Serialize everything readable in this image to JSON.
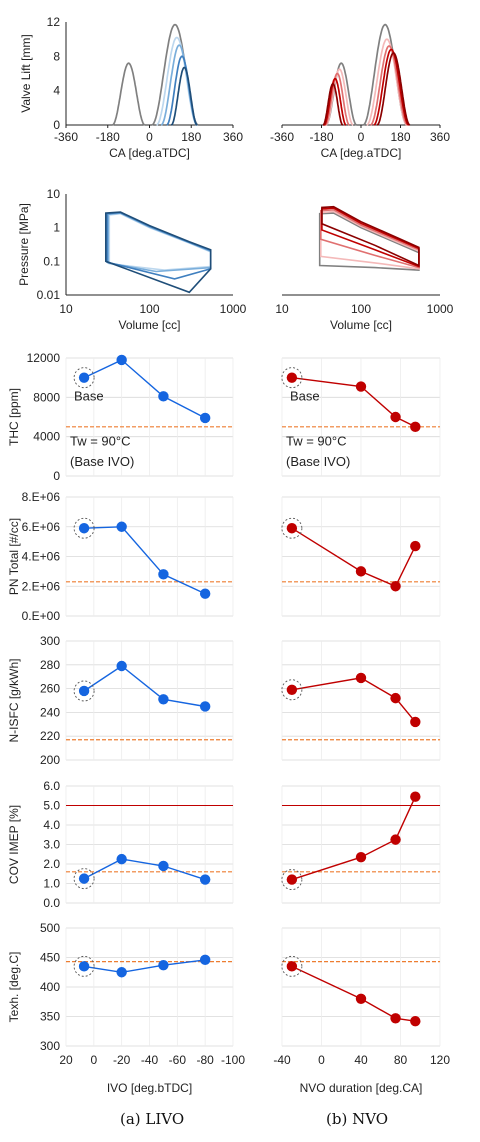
{
  "captions": {
    "a": "(a) LIVO",
    "b": "(b) NVO"
  },
  "annotations": {
    "base": "Base",
    "tw": "Tw = 90°C",
    "base_ivo": "(Base IVO)"
  },
  "colors": {
    "grey": "#808080",
    "blue_light": "#bcd7ee",
    "blue_mid": "#7aaedb",
    "blue": "#3f7fbf",
    "blue_dark": "#1f4e79",
    "red_light": "#f4b9b9",
    "red_mid": "#e07070",
    "red": "#c00000",
    "red_dark": "#8b0000",
    "blue_marker": "#1565e0",
    "red_marker": "#c00000",
    "baseline": "#ed7d31",
    "limit": "#c00000"
  },
  "chart_data": [
    {
      "id": "lift_a",
      "type": "line",
      "xlabel": "CA [deg.aTDC]",
      "ylabel": "Valve Lift [mm]",
      "xlim": [
        -360,
        360
      ],
      "ylim": [
        0,
        12
      ],
      "xticks": [
        -360,
        -180,
        0,
        180,
        360
      ],
      "yticks": [
        0,
        4,
        8,
        12
      ],
      "series": [
        {
          "color": "#808080",
          "type": "exhaust",
          "center": -90,
          "half": 70,
          "peak": 7.2
        },
        {
          "color": "#808080",
          "type": "intake",
          "center": 110,
          "half": 100,
          "peak": 11.7
        },
        {
          "color": "#bcd7ee",
          "type": "intake",
          "center": 118,
          "half": 88,
          "peak": 10.2
        },
        {
          "color": "#7aaedb",
          "type": "intake",
          "center": 128,
          "half": 78,
          "peak": 9.3
        },
        {
          "color": "#3f7fbf",
          "type": "intake",
          "center": 140,
          "half": 66,
          "peak": 8.0
        },
        {
          "color": "#1f4e79",
          "type": "intake",
          "center": 150,
          "half": 56,
          "peak": 6.7
        }
      ]
    },
    {
      "id": "lift_b",
      "type": "line",
      "xlabel": "CA [deg.aTDC]",
      "ylabel": "",
      "xlim": [
        -360,
        360
      ],
      "ylim": [
        0,
        12
      ],
      "xticks": [
        -360,
        -180,
        0,
        180,
        360
      ],
      "series": [
        {
          "color": "#808080",
          "type": "exhaust",
          "center": -90,
          "half": 70,
          "peak": 7.2
        },
        {
          "color": "#808080",
          "type": "intake",
          "center": 110,
          "half": 100,
          "peak": 11.7
        },
        {
          "color": "#f4b9b9",
          "type": "exhaust",
          "center": -98,
          "half": 62,
          "peak": 6.5
        },
        {
          "color": "#f4b9b9",
          "type": "intake",
          "center": 118,
          "half": 92,
          "peak": 10.0
        },
        {
          "color": "#e07070",
          "type": "exhaust",
          "center": -108,
          "half": 55,
          "peak": 6.0
        },
        {
          "color": "#e07070",
          "type": "intake",
          "center": 128,
          "half": 85,
          "peak": 9.2
        },
        {
          "color": "#c00000",
          "type": "exhaust",
          "center": -118,
          "half": 50,
          "peak": 5.4
        },
        {
          "color": "#c00000",
          "type": "intake",
          "center": 138,
          "half": 80,
          "peak": 8.8
        },
        {
          "color": "#8b0000",
          "type": "exhaust",
          "center": -128,
          "half": 45,
          "peak": 4.8
        },
        {
          "color": "#8b0000",
          "type": "intake",
          "center": 148,
          "half": 75,
          "peak": 8.4
        }
      ]
    },
    {
      "id": "pv_a",
      "type": "line",
      "scale": "log",
      "xlabel": "Volume [cc]",
      "ylabel": "Pressure [MPa]",
      "xlim": [
        10,
        1000
      ],
      "ylim": [
        0.01,
        10
      ],
      "xticks": [
        10,
        100,
        1000
      ],
      "yticks": [
        0.01,
        0.1,
        1,
        10
      ],
      "series": [
        {
          "color": "#bcd7ee",
          "high": [
            [
              33,
              2.4
            ],
            [
              45,
              2.6
            ],
            [
              100,
              1.0
            ],
            [
              300,
              0.35
            ],
            [
              540,
              0.19
            ]
          ],
          "low": [
            [
              33,
              0.085
            ],
            [
              150,
              0.055
            ],
            [
              540,
              0.07
            ]
          ]
        },
        {
          "color": "#7aaedb",
          "high": [
            [
              32,
              2.5
            ],
            [
              45,
              2.7
            ],
            [
              100,
              1.05
            ],
            [
              300,
              0.36
            ],
            [
              540,
              0.2
            ]
          ],
          "low": [
            [
              32,
              0.09
            ],
            [
              120,
              0.05
            ],
            [
              540,
              0.065
            ]
          ]
        },
        {
          "color": "#3f7fbf",
          "high": [
            [
              31,
              2.6
            ],
            [
              45,
              2.8
            ],
            [
              100,
              1.1
            ],
            [
              300,
              0.37
            ],
            [
              540,
              0.21
            ]
          ],
          "low": [
            [
              31,
              0.095
            ],
            [
              200,
              0.03
            ],
            [
              540,
              0.06
            ]
          ]
        },
        {
          "color": "#1f4e79",
          "high": [
            [
              30,
              2.7
            ],
            [
              45,
              2.9
            ],
            [
              100,
              1.15
            ],
            [
              300,
              0.38
            ],
            [
              540,
              0.22
            ]
          ],
          "low": [
            [
              30,
              0.1
            ],
            [
              300,
              0.012
            ],
            [
              540,
              0.06
            ]
          ]
        }
      ]
    },
    {
      "id": "pv_b",
      "type": "line",
      "scale": "log",
      "xlabel": "Volume [cc]",
      "ylabel": "",
      "xlim": [
        10,
        1000
      ],
      "ylim": [
        0.01,
        10
      ],
      "xticks": [
        10,
        100,
        1000
      ],
      "series": [
        {
          "color": "#808080",
          "high": [
            [
              30,
              2.6
            ],
            [
              45,
              2.7
            ],
            [
              100,
              1.0
            ],
            [
              300,
              0.33
            ],
            [
              540,
              0.18
            ]
          ],
          "low": [
            [
              30,
              0.075
            ],
            [
              150,
              0.065
            ],
            [
              540,
              0.055
            ]
          ]
        },
        {
          "color": "#f4b9b9",
          "high": [
            [
              31,
              2.8
            ],
            [
              45,
              3.0
            ],
            [
              100,
              1.1
            ],
            [
              300,
              0.36
            ],
            [
              540,
              0.2
            ]
          ],
          "low": [
            [
              31,
              0.14
            ],
            [
              150,
              0.09
            ],
            [
              540,
              0.06
            ]
          ]
        },
        {
          "color": "#e07070",
          "high": [
            [
              31,
              3.2
            ],
            [
              45,
              3.4
            ],
            [
              100,
              1.2
            ],
            [
              300,
              0.4
            ],
            [
              540,
              0.22
            ]
          ],
          "low": [
            [
              31,
              0.45
            ],
            [
              150,
              0.15
            ],
            [
              540,
              0.065
            ]
          ]
        },
        {
          "color": "#c00000",
          "high": [
            [
              32,
              3.6
            ],
            [
              45,
              3.8
            ],
            [
              100,
              1.35
            ],
            [
              300,
              0.44
            ],
            [
              540,
              0.24
            ]
          ],
          "low": [
            [
              32,
              0.85
            ],
            [
              150,
              0.22
            ],
            [
              540,
              0.07
            ]
          ]
        },
        {
          "color": "#8b0000",
          "high": [
            [
              32,
              4.0
            ],
            [
              45,
              4.2
            ],
            [
              100,
              1.5
            ],
            [
              300,
              0.48
            ],
            [
              540,
              0.26
            ]
          ],
          "low": [
            [
              32,
              1.3
            ],
            [
              150,
              0.3
            ],
            [
              540,
              0.075
            ]
          ]
        }
      ]
    },
    {
      "id": "thc_a",
      "type": "scatter",
      "ylabel": "THC [ppm]",
      "xlim": [
        20,
        -100
      ],
      "ylim": [
        0,
        12000
      ],
      "yticks": [
        0,
        4000,
        8000,
        12000
      ],
      "x": [
        7,
        -20,
        -50,
        -80
      ],
      "y": [
        10000,
        11800,
        8100,
        5900
      ],
      "baseline": 5000
    },
    {
      "id": "thc_b",
      "type": "scatter",
      "ylabel": "",
      "xlim": [
        -40,
        120
      ],
      "ylim": [
        0,
        12000
      ],
      "x": [
        -30,
        40,
        75,
        95
      ],
      "y": [
        10000,
        9100,
        6000,
        5000
      ],
      "baseline": 5000
    },
    {
      "id": "pn_a",
      "type": "scatter",
      "ylabel": "PN Total [#/cc]",
      "xlim": [
        20,
        -100
      ],
      "ylim": [
        0,
        8000000
      ],
      "yticks": [
        0,
        2000000,
        4000000,
        6000000,
        8000000
      ],
      "ytick_labels": [
        "0.E+00",
        "2.E+06",
        "4.E+06",
        "6.E+06",
        "8.E+06"
      ],
      "x": [
        7,
        -20,
        -50,
        -80
      ],
      "y": [
        5900000,
        6000000,
        2800000,
        1500000
      ],
      "baseline": 2300000
    },
    {
      "id": "pn_b",
      "type": "scatter",
      "ylabel": "",
      "xlim": [
        -40,
        120
      ],
      "ylim": [
        0,
        8000000
      ],
      "x": [
        -30,
        40,
        75,
        95
      ],
      "y": [
        5900000,
        3000000,
        2000000,
        4700000
      ],
      "baseline": 2300000
    },
    {
      "id": "isfc_a",
      "type": "scatter",
      "ylabel": "N-ISFC [g/kWh]",
      "xlim": [
        20,
        -100
      ],
      "ylim": [
        200,
        300
      ],
      "yticks": [
        200,
        220,
        240,
        260,
        280,
        300
      ],
      "x": [
        7,
        -20,
        -50,
        -80
      ],
      "y": [
        258,
        279,
        251,
        245
      ],
      "baseline": 217
    },
    {
      "id": "isfc_b",
      "type": "scatter",
      "ylabel": "",
      "xlim": [
        -40,
        120
      ],
      "ylim": [
        200,
        300
      ],
      "x": [
        -30,
        40,
        75,
        95
      ],
      "y": [
        259,
        269,
        252,
        232
      ],
      "baseline": 217
    },
    {
      "id": "cov_a",
      "type": "scatter",
      "ylabel": "COV IMEP [%]",
      "xlim": [
        20,
        -100
      ],
      "ylim": [
        0,
        6
      ],
      "yticks": [
        0,
        1,
        2,
        3,
        4,
        5,
        6
      ],
      "ytick_labels": [
        "0.0",
        "1.0",
        "2.0",
        "3.0",
        "4.0",
        "5.0",
        "6.0"
      ],
      "x": [
        7,
        -20,
        -50,
        -80
      ],
      "y": [
        1.25,
        2.25,
        1.9,
        1.2
      ],
      "baseline": 1.6,
      "limit": 5.0
    },
    {
      "id": "cov_b",
      "type": "scatter",
      "ylabel": "",
      "xlim": [
        -40,
        120
      ],
      "ylim": [
        0,
        6
      ],
      "x": [
        -30,
        40,
        75,
        95
      ],
      "y": [
        1.2,
        2.35,
        3.25,
        5.45
      ],
      "baseline": 1.6,
      "limit": 5.0
    },
    {
      "id": "texh_a",
      "type": "scatter",
      "ylabel": "Texh. [deg.C]",
      "xlabel": "IVO [deg.bTDC]",
      "xlim": [
        20,
        -100
      ],
      "ylim": [
        300,
        500
      ],
      "yticks": [
        300,
        350,
        400,
        450,
        500
      ],
      "xticks": [
        20,
        0,
        -20,
        -40,
        -60,
        -80,
        -100
      ],
      "x": [
        7,
        -20,
        -50,
        -80
      ],
      "y": [
        435,
        425,
        437,
        446
      ],
      "baseline": 443
    },
    {
      "id": "texh_b",
      "type": "scatter",
      "ylabel": "",
      "xlabel": "NVO duration [deg.CA]",
      "xlim": [
        -40,
        120
      ],
      "ylim": [
        300,
        500
      ],
      "xticks": [
        -40,
        0,
        40,
        80,
        120
      ],
      "x": [
        -30,
        40,
        75,
        95
      ],
      "y": [
        435,
        380,
        347,
        342
      ],
      "baseline": 443
    }
  ]
}
